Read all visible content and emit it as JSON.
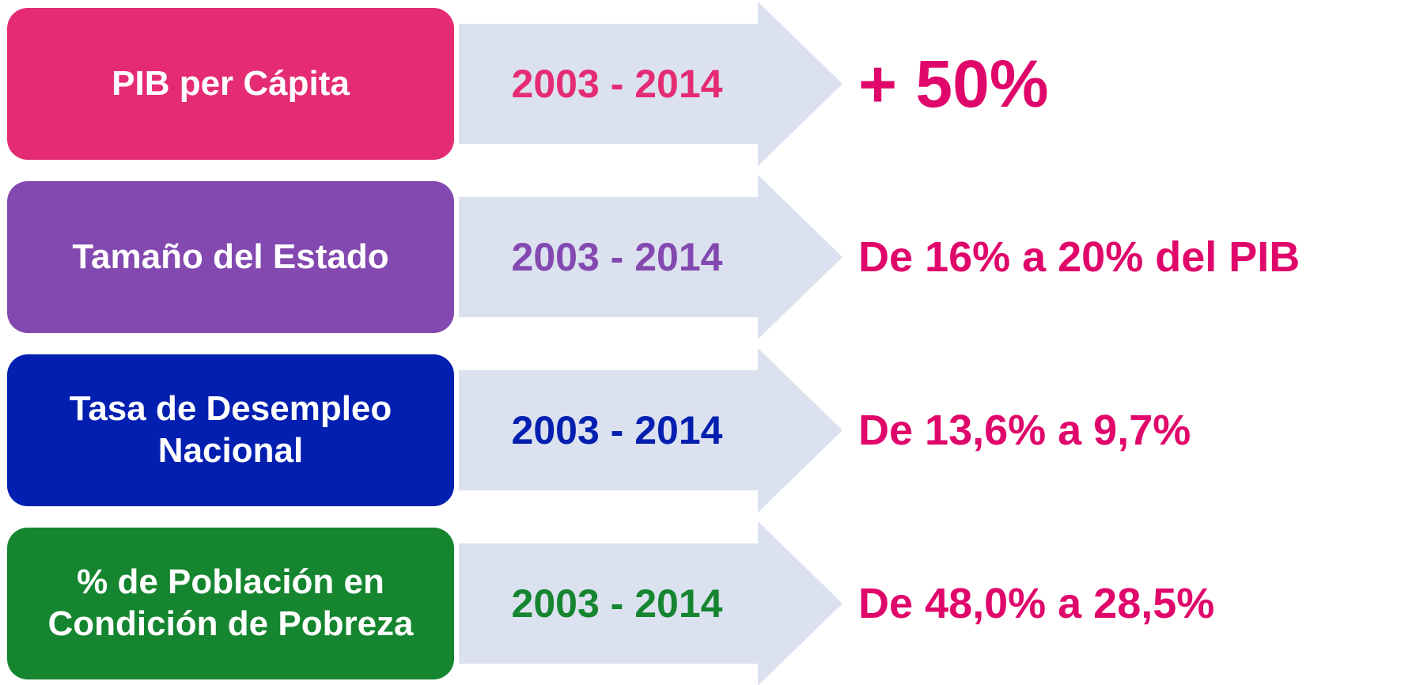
{
  "rows": [
    {
      "label": "PIB per Cápita",
      "period": "2003 - 2014",
      "result": "+ 50%",
      "color": "#e52b73"
    },
    {
      "label": "Tamaño del Estado",
      "period": "2003 - 2014",
      "result": "De 16% a 20% del PIB",
      "color": "#8349b0"
    },
    {
      "label": "Tasa de Desempleo Nacional",
      "period": "2003 - 2014",
      "result": "De 13,6% a 9,7%",
      "color": "#021fb0"
    },
    {
      "label": "% de Población en Condición de Pobreza",
      "period": "2003 - 2014",
      "result": "De 48,0% a 28,5%",
      "color": "#15852f"
    }
  ]
}
